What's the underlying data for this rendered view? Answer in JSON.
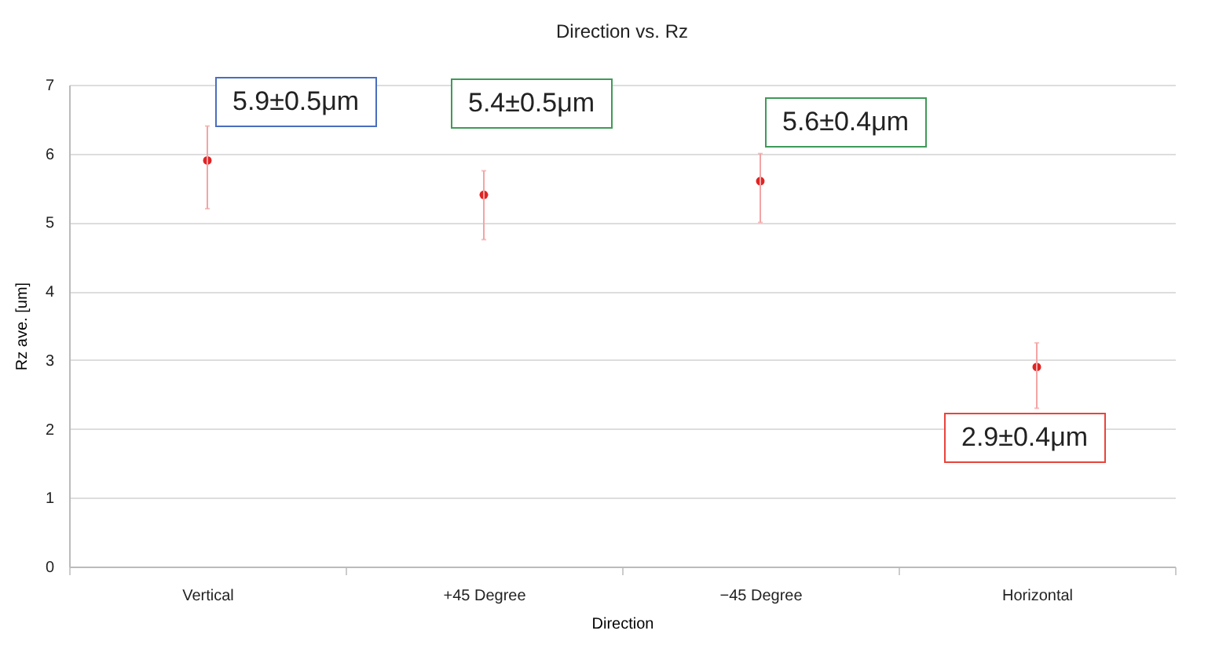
{
  "chart_data": {
    "type": "scatter",
    "title": "Direction vs. Rz",
    "xlabel": "Direction",
    "ylabel": "Rz ave. [um]",
    "categories": [
      "Vertical",
      "+45 Degree",
      "−45 Degree",
      "Horizontal"
    ],
    "values": [
      5.9,
      5.4,
      5.6,
      2.9
    ],
    "errors": [
      [
        5.2,
        6.4
      ],
      [
        4.75,
        5.75
      ],
      [
        5.0,
        6.0
      ],
      [
        2.3,
        3.25
      ]
    ],
    "color": "#e02424",
    "ylim": [
      0,
      7
    ],
    "yticks": [
      0,
      1,
      2,
      3,
      4,
      5,
      6,
      7
    ],
    "grid": "y",
    "marker": "circle",
    "annotations": [
      {
        "text": "5.9±0.5μm",
        "x": "Vertical",
        "y": 5.9
      },
      {
        "text": "5.4±0.5μm",
        "x": "+45 Degree",
        "y": 5.4
      },
      {
        "text": "5.6±0.4μm",
        "x": "−45 Degree",
        "y": 5.6
      },
      {
        "text": "2.9±0.4μm",
        "x": "Horizontal",
        "y": 2.9
      }
    ]
  }
}
